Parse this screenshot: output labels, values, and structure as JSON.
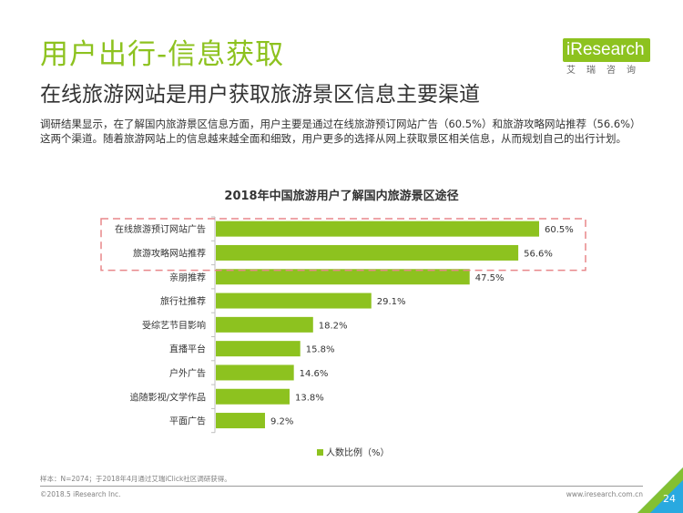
{
  "header": {
    "title": "用户出行-信息获取",
    "subtitle": "在线旅游网站是用户获取旅游景区信息主要渠道"
  },
  "logo": {
    "name": "iResearch",
    "sub": "艾瑞咨询"
  },
  "summary": "调研结果显示，在了解国内旅游景区信息方面，用户主要是通过在线旅游预订网站广告（60.5%）和旅游攻略网站推荐（56.6%）这两个渠道。随着旅游网站上的信息越来越全面和细致，用户更多的选择从网上获取景区相关信息，从而规划自己的出行计划。",
  "chart_data": {
    "type": "bar",
    "orientation": "horizontal",
    "title": "2018年中国旅游用户了解国内旅游景区途径",
    "categories": [
      "在线旅游预订网站广告",
      "旅游攻略网站推荐",
      "亲朋推荐",
      "旅行社推荐",
      "受综艺节目影响",
      "直播平台",
      "户外广告",
      "追随影视/文学作品",
      "平面广告"
    ],
    "series": [
      {
        "name": "人数比例（%）",
        "values": [
          60.5,
          56.6,
          47.5,
          29.1,
          18.2,
          15.8,
          14.6,
          13.8,
          9.2
        ],
        "labels": [
          "60.5%",
          "56.6%",
          "47.5%",
          "29.1%",
          "18.2%",
          "15.8%",
          "14.6%",
          "13.8%",
          "9.2%"
        ]
      }
    ],
    "xlim": [
      0,
      70
    ],
    "grid": false,
    "legend": "bottom",
    "highlighted_categories": [
      "在线旅游预订网站广告",
      "旅游攻略网站推荐"
    ],
    "colors": {
      "bar": "#8dc21f",
      "highlight_box": "#e8878a"
    }
  },
  "footer": {
    "note": "样本：N=2074；于2018年4月通过艾瑞iClick社区调研获得。",
    "copyright": "©2018.5 iResearch Inc.",
    "website": "www.iresearch.com.cn",
    "page": "24"
  },
  "colors": {
    "accent": "#8dc21f",
    "corner": "#29a9e0"
  }
}
